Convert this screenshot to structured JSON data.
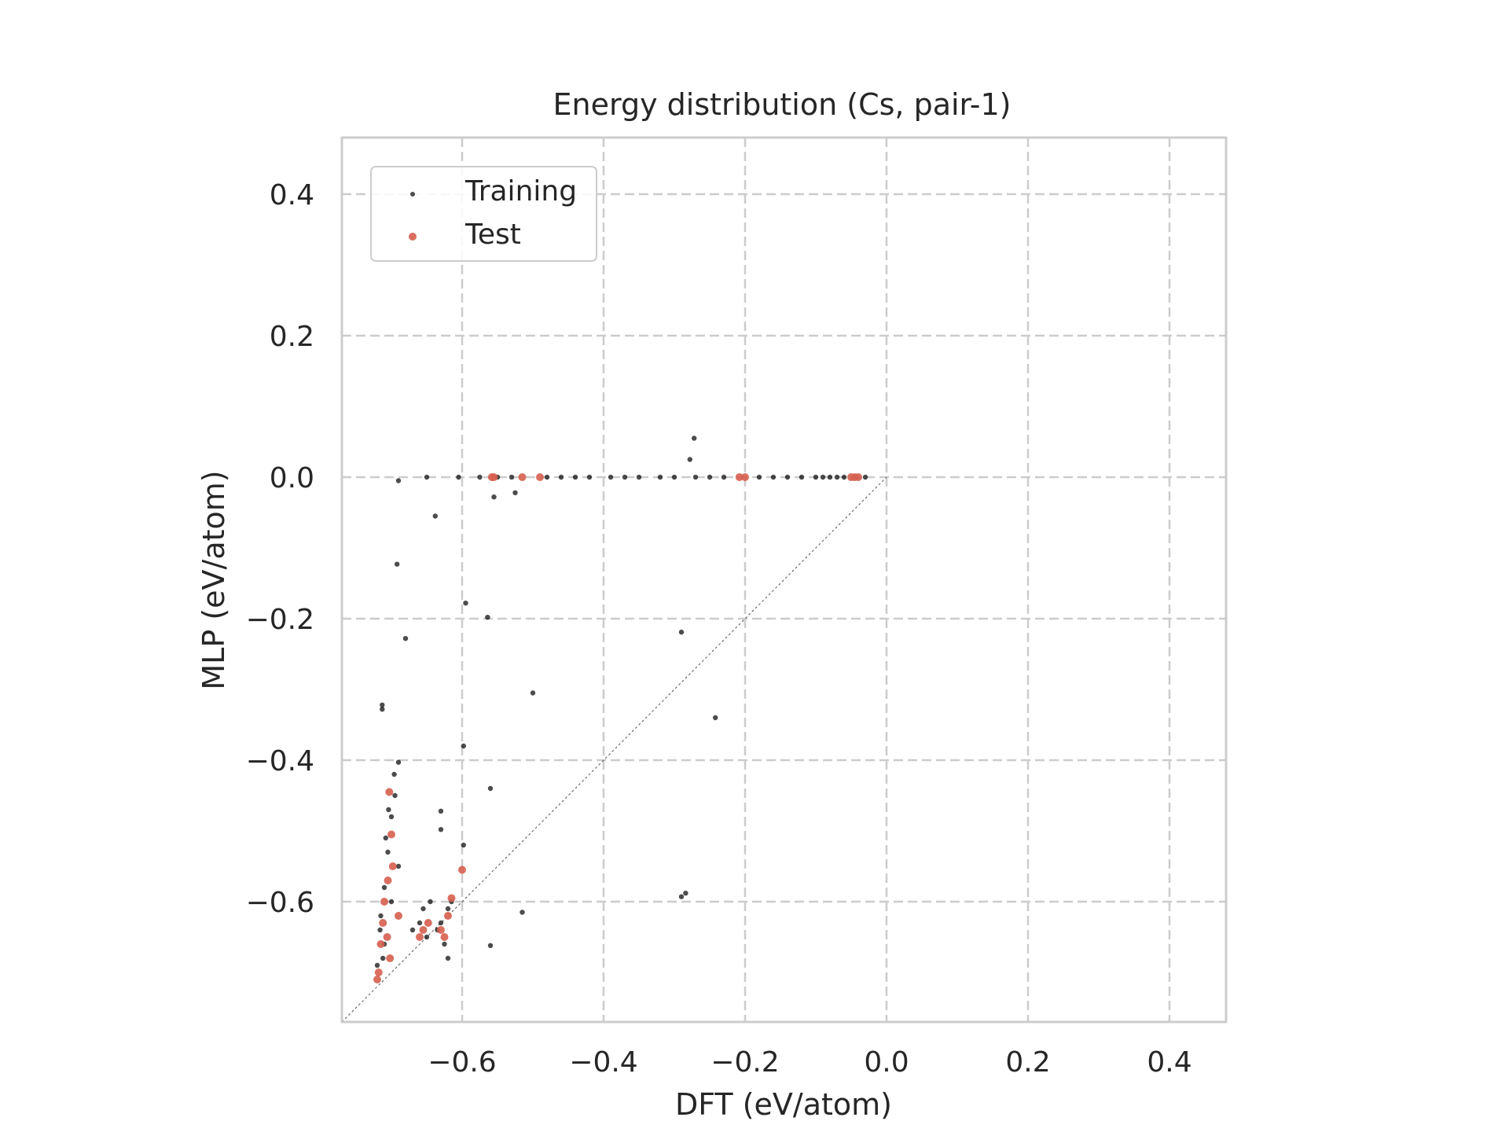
{
  "chart_data": {
    "type": "scatter",
    "title": "Energy distribution (Cs, pair-1)",
    "xlabel": "DFT (eV/atom)",
    "ylabel": "MLP (eV/atom)",
    "xlim": [
      -0.77,
      0.48
    ],
    "ylim": [
      -0.77,
      0.48
    ],
    "xticks": [
      -0.6,
      -0.4,
      -0.2,
      0.0,
      0.2,
      0.4
    ],
    "yticks": [
      -0.6,
      -0.4,
      -0.2,
      0.0,
      0.2,
      0.4
    ],
    "xtick_labels": [
      "−0.6",
      "−0.4",
      "−0.2",
      "0.0",
      "0.2",
      "0.4"
    ],
    "ytick_labels": [
      "−0.6",
      "−0.4",
      "−0.2",
      "0.0",
      "0.2",
      "0.4"
    ],
    "grid": true,
    "legend_position": "top-left",
    "reference_line": "y = x",
    "series": [
      {
        "name": "Training",
        "color": "#000000",
        "points": [
          [
            -0.69,
            -0.005
          ],
          [
            -0.65,
            0.0
          ],
          [
            -0.605,
            0.0
          ],
          [
            -0.575,
            0.0
          ],
          [
            -0.55,
            0.0
          ],
          [
            -0.53,
            0.0
          ],
          [
            -0.48,
            0.0
          ],
          [
            -0.46,
            0.0
          ],
          [
            -0.44,
            0.0
          ],
          [
            -0.42,
            0.0
          ],
          [
            -0.39,
            0.0
          ],
          [
            -0.37,
            0.0
          ],
          [
            -0.35,
            0.0
          ],
          [
            -0.32,
            0.0
          ],
          [
            -0.3,
            0.0
          ],
          [
            -0.27,
            0.0
          ],
          [
            -0.25,
            0.0
          ],
          [
            -0.23,
            0.0
          ],
          [
            -0.18,
            0.0
          ],
          [
            -0.16,
            0.0
          ],
          [
            -0.14,
            0.0
          ],
          [
            -0.12,
            0.0
          ],
          [
            -0.1,
            0.0
          ],
          [
            -0.09,
            0.0
          ],
          [
            -0.08,
            0.0
          ],
          [
            -0.07,
            0.0
          ],
          [
            -0.06,
            0.0
          ],
          [
            -0.03,
            0.0
          ],
          [
            -0.272,
            0.055
          ],
          [
            -0.278,
            0.025
          ],
          [
            -0.555,
            -0.028
          ],
          [
            -0.525,
            -0.022
          ],
          [
            -0.638,
            -0.055
          ],
          [
            -0.692,
            -0.123
          ],
          [
            -0.595,
            -0.178
          ],
          [
            -0.564,
            -0.198
          ],
          [
            -0.68,
            -0.228
          ],
          [
            -0.29,
            -0.219
          ],
          [
            -0.5,
            -0.305
          ],
          [
            -0.242,
            -0.34
          ],
          [
            -0.713,
            -0.322
          ],
          [
            -0.713,
            -0.328
          ],
          [
            -0.598,
            -0.38
          ],
          [
            -0.69,
            -0.403
          ],
          [
            -0.56,
            -0.44
          ],
          [
            -0.63,
            -0.472
          ],
          [
            -0.63,
            -0.498
          ],
          [
            -0.598,
            -0.52
          ],
          [
            -0.29,
            -0.593
          ],
          [
            -0.284,
            -0.588
          ],
          [
            -0.515,
            -0.615
          ],
          [
            -0.56,
            -0.662
          ],
          [
            -0.62,
            -0.68
          ],
          [
            -0.715,
            -0.62
          ],
          [
            -0.71,
            -0.58
          ],
          [
            -0.705,
            -0.53
          ],
          [
            -0.7,
            -0.48
          ],
          [
            -0.695,
            -0.45
          ],
          [
            -0.71,
            -0.66
          ],
          [
            -0.72,
            -0.69
          ],
          [
            -0.7,
            -0.6
          ],
          [
            -0.69,
            -0.55
          ],
          [
            -0.708,
            -0.51
          ],
          [
            -0.704,
            -0.47
          ],
          [
            -0.696,
            -0.42
          ],
          [
            -0.716,
            -0.64
          ],
          [
            -0.712,
            -0.68
          ],
          [
            -0.66,
            -0.63
          ],
          [
            -0.655,
            -0.61
          ],
          [
            -0.645,
            -0.6
          ],
          [
            -0.65,
            -0.65
          ],
          [
            -0.67,
            -0.64
          ],
          [
            -0.63,
            -0.63
          ],
          [
            -0.62,
            -0.61
          ],
          [
            -0.615,
            -0.6
          ],
          [
            -0.625,
            -0.66
          ],
          [
            -0.635,
            -0.64
          ]
        ]
      },
      {
        "name": "Test",
        "color": "#d65f4f",
        "points": [
          [
            -0.558,
            0.0
          ],
          [
            -0.555,
            0.0
          ],
          [
            -0.515,
            0.0
          ],
          [
            -0.49,
            0.0
          ],
          [
            -0.208,
            0.0
          ],
          [
            -0.2,
            0.0
          ],
          [
            -0.05,
            0.0
          ],
          [
            -0.045,
            0.0
          ],
          [
            -0.04,
            0.0
          ],
          [
            -0.703,
            -0.445
          ],
          [
            -0.7,
            -0.505
          ],
          [
            -0.705,
            -0.57
          ],
          [
            -0.69,
            -0.62
          ],
          [
            -0.6,
            -0.555
          ],
          [
            -0.615,
            -0.595
          ],
          [
            -0.71,
            -0.6
          ],
          [
            -0.712,
            -0.63
          ],
          [
            -0.715,
            -0.66
          ],
          [
            -0.718,
            -0.7
          ],
          [
            -0.72,
            -0.71
          ],
          [
            -0.706,
            -0.65
          ],
          [
            -0.702,
            -0.68
          ],
          [
            -0.66,
            -0.65
          ],
          [
            -0.655,
            -0.64
          ],
          [
            -0.648,
            -0.63
          ],
          [
            -0.63,
            -0.64
          ],
          [
            -0.625,
            -0.65
          ],
          [
            -0.62,
            -0.62
          ],
          [
            -0.698,
            -0.55
          ]
        ]
      }
    ]
  }
}
